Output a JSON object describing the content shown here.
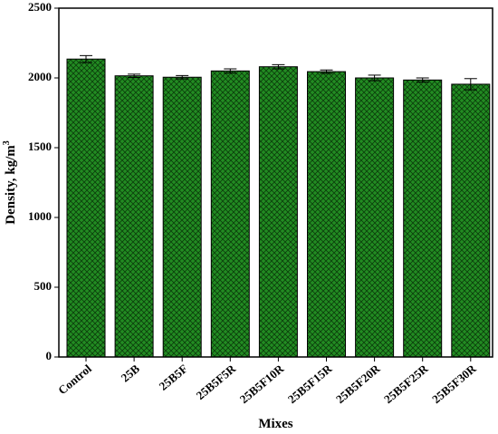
{
  "chart_data": {
    "type": "bar",
    "categories": [
      "Control",
      "25B",
      "25B5F",
      "25B5F5R",
      "25B5F10R",
      "25B5F15R",
      "25B5F20R",
      "25B5F25R",
      "25B5F30R"
    ],
    "values": [
      2135,
      2015,
      2005,
      2050,
      2080,
      2045,
      2000,
      1985,
      1955
    ],
    "errors": [
      25,
      12,
      12,
      15,
      15,
      12,
      20,
      15,
      40
    ],
    "xlabel": "Mixes",
    "ylabel": "Density, kg/m",
    "ylabel_superscript": "3",
    "ylim": [
      0,
      2500
    ],
    "yticks": [
      0,
      500,
      1000,
      1500,
      2000,
      2500
    ],
    "ytick_labels": [
      "0",
      "500",
      "1000",
      "1500",
      "2000",
      "2500"
    ],
    "grid": false,
    "legend": "none",
    "bar_fill": "#228B22",
    "bar_pattern": "crosshatch",
    "bar_stroke": "#000000"
  }
}
